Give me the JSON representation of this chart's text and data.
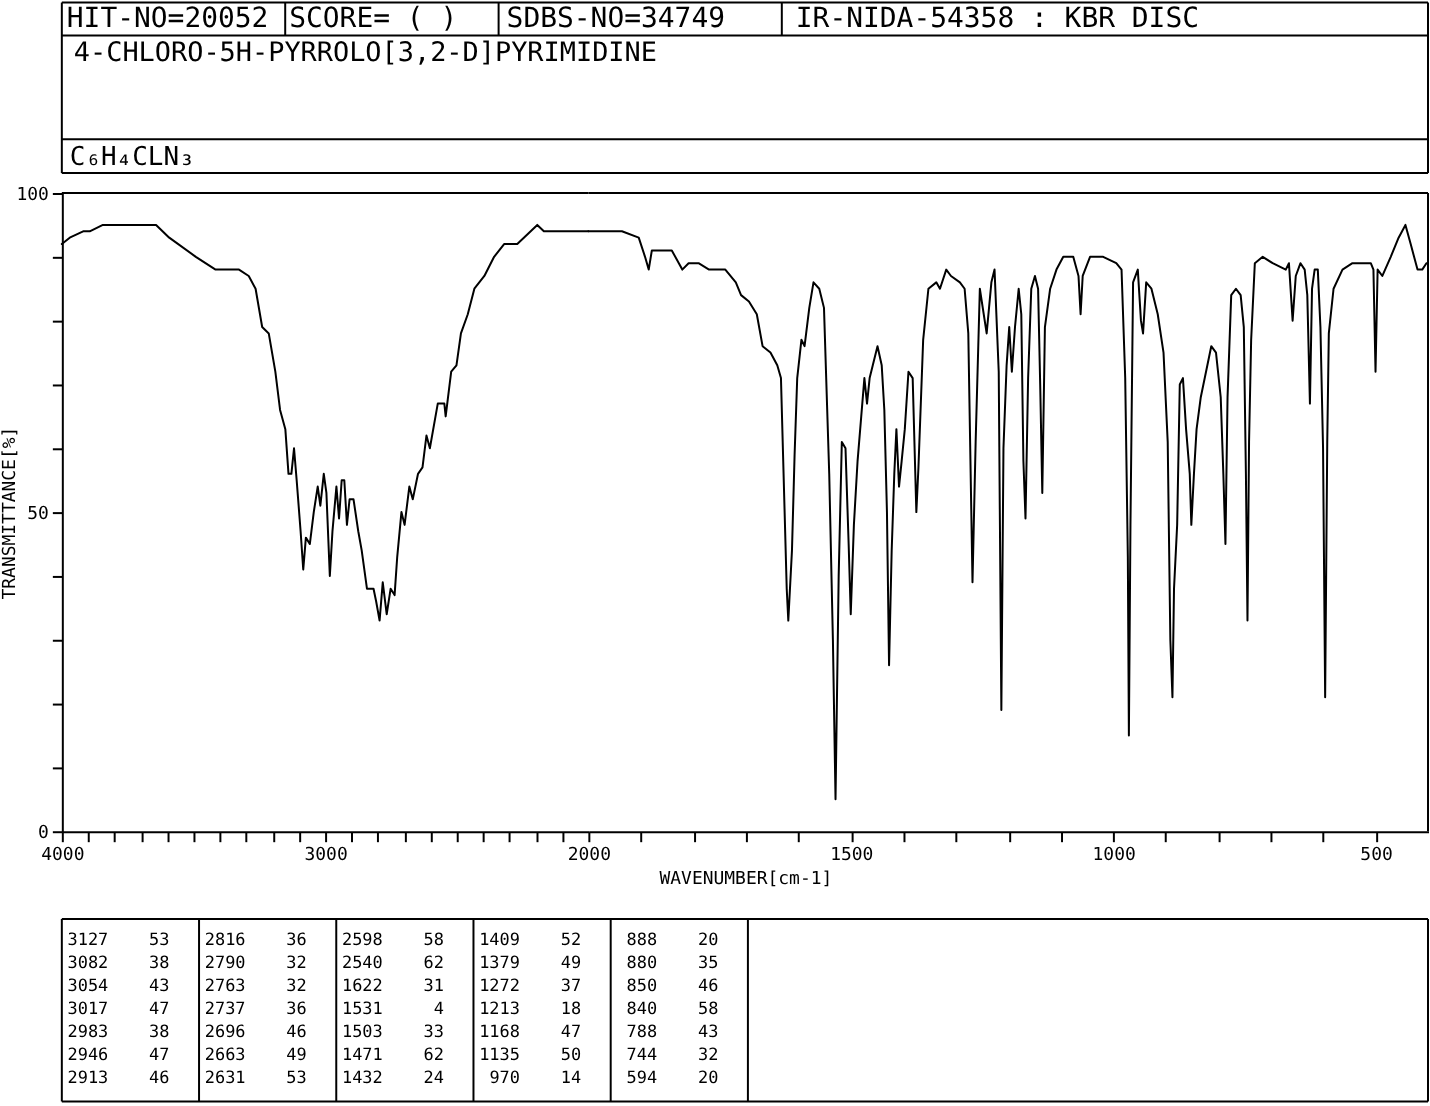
{
  "chart_data": [
    {
      "type": "line",
      "title": "4-CHLORO-5H-PYRROLO[3,2-D]PYRIMIDINE",
      "subtitle": "C₆H₄CLN₃",
      "ylabel": "TRANSMITTANCE[%]",
      "annotations": [
        "HIT-NO=20052",
        "SCORE= ( )",
        "SDBS-NO=34749",
        "IR-NIDA-54358 : KBR DISC",
        "3127 53",
        "3082 38",
        "3054 43",
        "3017 47",
        "2983 38",
        "2946 47",
        "2913 46",
        "2816 36",
        "2790 32",
        "2763 32",
        "2737 36",
        "2696 46",
        "2663 49",
        "2631 53",
        "2598 58",
        "2540 62",
        "1622 31",
        "1531 4",
        "1503 33",
        "1471 62",
        "1432 24",
        "1409 52",
        "1379 49",
        "1272 37",
        "1213 18",
        "1168 47",
        "1135 50",
        "970 14",
        "888 20",
        "880 35",
        "850 46",
        "840 58",
        "788 43",
        "744 32",
        "594 20"
      ],
      "color": "#000000",
      "xlim": [
        4000,
        2000
      ],
      "xticks": [
        4000,
        {
          "value": 3900,
          "label": null
        },
        {
          "value": 3800,
          "label": null
        },
        {
          "value": 3700,
          "label": null
        },
        {
          "value": 3600,
          "label": null
        },
        {
          "value": 3500,
          "label": null
        },
        {
          "value": 3400,
          "label": null
        },
        {
          "value": 3300,
          "label": null
        },
        {
          "value": 3200,
          "label": null
        },
        {
          "value": 3100,
          "label": null
        },
        3000,
        {
          "value": 2900,
          "label": null
        },
        {
          "value": 2800,
          "label": null
        },
        {
          "value": 2700,
          "label": null
        },
        {
          "value": 2600,
          "label": null
        },
        {
          "value": 2500,
          "label": null
        },
        {
          "value": 2400,
          "label": null
        },
        {
          "value": 2300,
          "label": null
        },
        {
          "value": 2200,
          "label": null
        },
        {
          "value": 2100,
          "label": null
        },
        2000
      ],
      "ylim": [
        0,
        100
      ],
      "yticks": [
        0,
        {
          "value": 10,
          "label": null
        },
        {
          "value": 20,
          "label": null
        },
        {
          "value": 30,
          "label": null
        },
        {
          "value": 40,
          "label": null
        },
        50,
        {
          "value": 60,
          "label": null
        },
        {
          "value": 70,
          "label": null
        },
        {
          "value": 80,
          "label": null
        },
        {
          "value": 90,
          "label": null
        },
        100
      ],
      "x": [
        4000,
        3970,
        3919,
        3894,
        3844,
        3781,
        3642,
        3592,
        3491,
        3416,
        3365,
        3327,
        3290,
        3264,
        3239,
        3214,
        3189,
        3171,
        3151,
        3139,
        3128,
        3118,
        3108,
        3093,
        3083,
        3073,
        3058,
        3043,
        3028,
        3018,
        3005,
        2995,
        2982,
        2972,
        2957,
        2947,
        2937,
        2927,
        2917,
        2907,
        2892,
        2874,
        2861,
        2841,
        2816,
        2806,
        2793,
        2781,
        2766,
        2751,
        2736,
        2726,
        2710,
        2698,
        2680,
        2667,
        2647,
        2630,
        2615,
        2602,
        2572,
        2547,
        2542,
        2521,
        2501,
        2484,
        2458,
        2433,
        2395,
        2358,
        2320,
        2270,
        2219,
        2194,
        2169,
        2093,
        2018,
        2000
      ],
      "values": [
        92,
        93,
        94,
        94,
        95,
        95,
        95,
        93,
        90,
        88,
        88,
        88,
        87,
        85,
        79,
        78,
        72,
        66,
        63,
        56,
        56,
        60,
        55,
        47,
        41,
        46,
        45,
        50,
        54,
        51,
        56,
        53,
        40,
        47,
        54,
        49,
        55,
        55,
        48,
        52,
        52,
        47,
        44,
        38,
        38,
        36,
        33,
        39,
        34,
        38,
        37,
        43,
        50,
        48,
        54,
        52,
        56,
        57,
        62,
        60,
        67,
        67,
        65,
        72,
        73,
        78,
        81,
        85,
        87,
        90,
        92,
        92,
        94,
        95,
        94,
        94,
        94,
        94
      ]
    },
    {
      "type": "line",
      "xlabel": "WAVENUMBER[cm-1]",
      "color": "#000000",
      "xlim": [
        2000,
        400
      ],
      "xticks": [
        {
          "value": 1900,
          "label": null
        },
        {
          "value": 1800,
          "label": null
        },
        {
          "value": 1700,
          "label": null
        },
        {
          "value": 1600,
          "label": null
        },
        1500,
        {
          "value": 1400,
          "label": null
        },
        {
          "value": 1300,
          "label": null
        },
        {
          "value": 1200,
          "label": null
        },
        {
          "value": 1100,
          "label": null
        },
        1000,
        {
          "value": 900,
          "label": null
        },
        {
          "value": 800,
          "label": null
        },
        {
          "value": 700,
          "label": null
        },
        {
          "value": 600,
          "label": null
        },
        500
      ],
      "ylim": [
        0,
        100
      ],
      "tick_labels": "x",
      "x": [
        2000,
        1974,
        1936,
        1904,
        1892,
        1885,
        1879,
        1860,
        1841,
        1821,
        1809,
        1790,
        1770,
        1739,
        1719,
        1709,
        1694,
        1679,
        1668,
        1653,
        1640,
        1633,
        1626,
        1622,
        1619,
        1612,
        1607,
        1602,
        1594,
        1588,
        1579,
        1571,
        1560,
        1551,
        1541,
        1534,
        1529,
        1523,
        1517,
        1510,
        1504,
        1500,
        1494,
        1487,
        1480,
        1474,
        1469,
        1464,
        1458,
        1449,
        1441,
        1436,
        1431,
        1427,
        1422,
        1417,
        1413,
        1408,
        1403,
        1397,
        1390,
        1382,
        1375,
        1371,
        1362,
        1352,
        1337,
        1330,
        1318,
        1309,
        1292,
        1283,
        1276,
        1268,
        1262,
        1254,
        1241,
        1232,
        1226,
        1218,
        1213,
        1209,
        1203,
        1198,
        1193,
        1187,
        1180,
        1175,
        1171,
        1167,
        1162,
        1156,
        1149,
        1143,
        1139,
        1135,
        1130,
        1120,
        1108,
        1095,
        1076,
        1066,
        1062,
        1058,
        1044,
        1019,
        994,
        984,
        977,
        972,
        970,
        967,
        962,
        953,
        947,
        943,
        937,
        927,
        915,
        904,
        896,
        891,
        887,
        884,
        878,
        873,
        867,
        861,
        854,
        851,
        846,
        841,
        833,
        823,
        813,
        804,
        795,
        790,
        786,
        782,
        775,
        766,
        757,
        751,
        747,
        744,
        741,
        737,
        730,
        715,
        696,
        671,
        665,
        658,
        652,
        643,
        635,
        630,
        625,
        621,
        616,
        610,
        605,
        600,
        596,
        592,
        589,
        580,
        563,
        544,
        525,
        516,
        509,
        504,
        500,
        496,
        487,
        471,
        456,
        443,
        433,
        420,
        411,
        403
      ],
      "values": [
        94,
        94,
        94,
        93,
        90,
        88,
        91,
        91,
        91,
        88,
        89,
        89,
        88,
        88,
        86,
        84,
        83,
        81,
        76,
        75,
        73,
        71,
        50,
        38,
        33,
        44,
        59,
        71,
        77,
        76,
        82,
        86,
        85,
        82,
        56,
        30,
        5,
        40,
        61,
        60,
        45,
        34,
        48,
        58,
        65,
        71,
        67,
        71,
        73,
        76,
        73,
        66,
        50,
        26,
        44,
        56,
        63,
        54,
        58,
        63,
        72,
        71,
        50,
        57,
        77,
        85,
        86,
        85,
        88,
        87,
        86,
        85,
        78,
        39,
        61,
        85,
        78,
        86,
        88,
        72,
        19,
        60,
        73,
        79,
        72,
        79,
        85,
        81,
        58,
        49,
        71,
        85,
        87,
        85,
        70,
        53,
        79,
        85,
        88,
        90,
        90,
        87,
        81,
        87,
        90,
        90,
        89,
        88,
        71,
        43,
        15,
        48,
        86,
        88,
        80,
        78,
        86,
        85,
        81,
        75,
        61,
        30,
        21,
        38,
        48,
        70,
        71,
        63,
        56,
        48,
        56,
        63,
        68,
        72,
        76,
        75,
        68,
        56,
        45,
        68,
        84,
        85,
        84,
        79,
        56,
        33,
        61,
        77,
        89,
        90,
        89,
        88,
        89,
        80,
        87,
        89,
        88,
        84,
        67,
        85,
        88,
        88,
        79,
        60,
        21,
        61,
        78,
        85,
        88,
        89,
        89,
        89,
        89,
        88,
        72,
        88,
        87,
        90,
        93,
        95,
        92,
        88,
        88,
        89
      ]
    }
  ]
}
